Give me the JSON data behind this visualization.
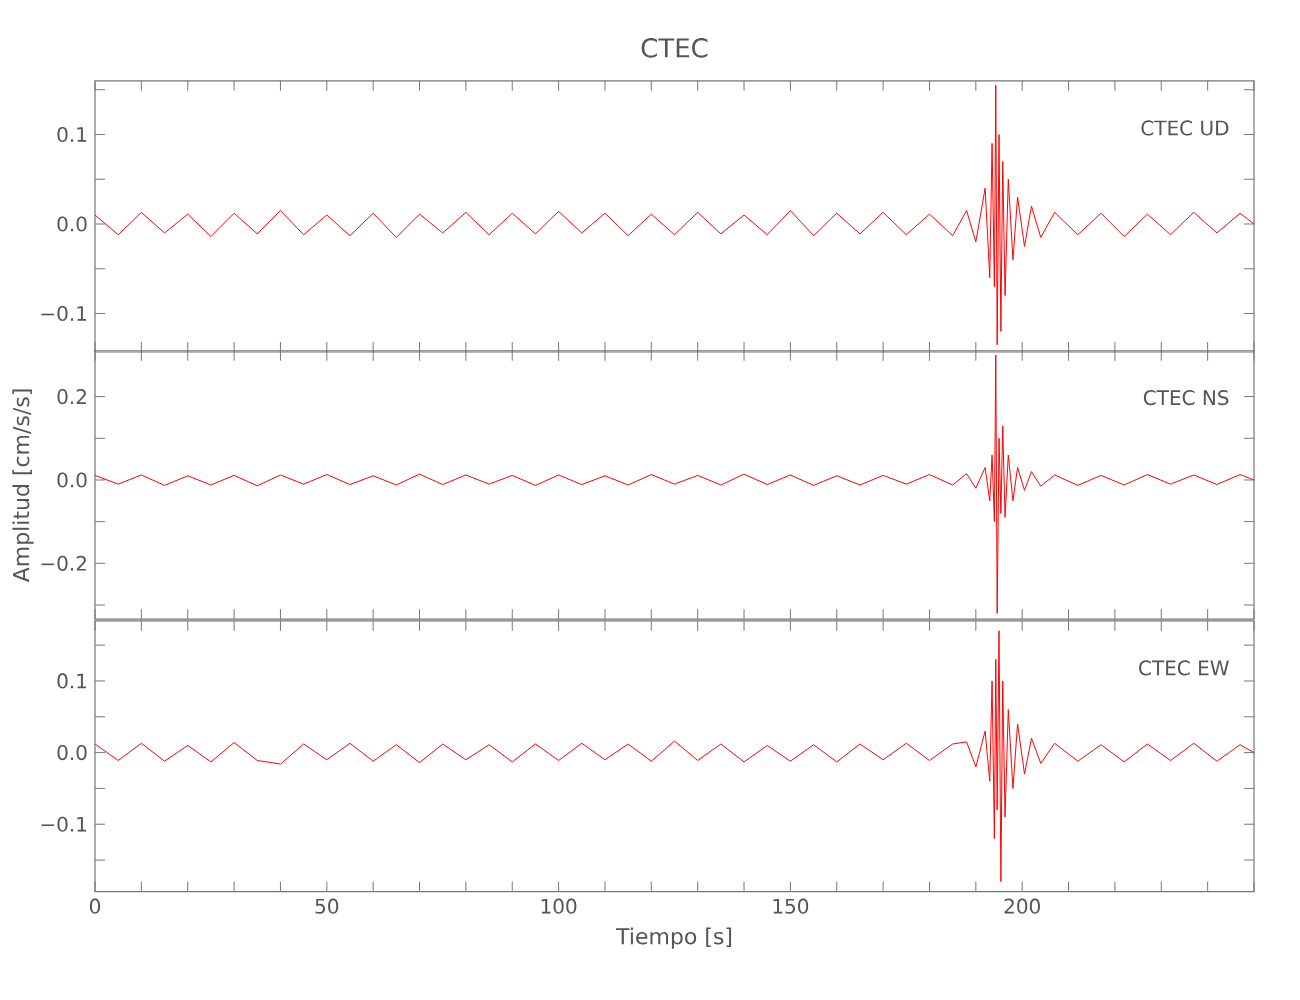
{
  "chart_data": [
    {
      "type": "line",
      "title": "CTEC",
      "annotations": [
        "CTEC   UD"
      ],
      "tick_labels": "y",
      "grid": false,
      "marker": "none",
      "line_style": "solid",
      "xlim": [
        0,
        250
      ],
      "xticks": [
        {
          "value": 0,
          "label": null
        },
        {
          "value": 10,
          "label": null
        },
        {
          "value": 20,
          "label": null
        },
        {
          "value": 30,
          "label": null
        },
        {
          "value": 40,
          "label": null
        },
        {
          "value": 50,
          "label": null
        },
        {
          "value": 60,
          "label": null
        },
        {
          "value": 70,
          "label": null
        },
        {
          "value": 80,
          "label": null
        },
        {
          "value": 90,
          "label": null
        },
        {
          "value": 100,
          "label": null
        },
        {
          "value": 110,
          "label": null
        },
        {
          "value": 120,
          "label": null
        },
        {
          "value": 130,
          "label": null
        },
        {
          "value": 140,
          "label": null
        },
        {
          "value": 150,
          "label": null
        },
        {
          "value": 160,
          "label": null
        },
        {
          "value": 170,
          "label": null
        },
        {
          "value": 180,
          "label": null
        },
        {
          "value": 190,
          "label": null
        },
        {
          "value": 200,
          "label": null
        },
        {
          "value": 210,
          "label": null
        },
        {
          "value": 220,
          "label": null
        },
        {
          "value": 230,
          "label": null
        },
        {
          "value": 240,
          "label": null
        },
        {
          "value": 250,
          "label": null
        }
      ],
      "ylim": [
        -0.143,
        0.16
      ],
      "yticks": [
        {
          "value": -0.1,
          "label": "−0.1"
        },
        {
          "value": -0.05,
          "label": null
        },
        {
          "value": 0,
          "label": "0.0"
        },
        {
          "value": 0.05,
          "label": null
        },
        {
          "value": 0.1,
          "label": "0.1"
        },
        {
          "value": 0.15,
          "label": null
        }
      ],
      "x": [
        0,
        5,
        10,
        15,
        20,
        25,
        30,
        35,
        40,
        45,
        50,
        55,
        60,
        65,
        70,
        75,
        80,
        85,
        90,
        95,
        100,
        105,
        110,
        115,
        120,
        125,
        130,
        135,
        140,
        145,
        150,
        155,
        160,
        165,
        170,
        175,
        180,
        185,
        188,
        190,
        192,
        193,
        193.5,
        194,
        194.3,
        194.6,
        195,
        195.4,
        195.8,
        196.3,
        197,
        198,
        199,
        200.5,
        202,
        204,
        207,
        212,
        217,
        222,
        227,
        232,
        237,
        242,
        247,
        250
      ],
      "series": [
        {
          "color": "#ff0000",
          "values": [
            0.01,
            -0.012,
            0.013,
            -0.01,
            0.011,
            -0.014,
            0.012,
            -0.011,
            0.015,
            -0.012,
            0.01,
            -0.013,
            0.012,
            -0.015,
            0.011,
            -0.01,
            0.013,
            -0.012,
            0.012,
            -0.011,
            0.014,
            -0.01,
            0.012,
            -0.013,
            0.011,
            -0.012,
            0.013,
            -0.011,
            0.01,
            -0.012,
            0.015,
            -0.013,
            0.012,
            -0.011,
            0.013,
            -0.012,
            0.011,
            -0.013,
            0.015,
            -0.02,
            0.04,
            -0.06,
            0.09,
            -0.07,
            0.155,
            -0.135,
            0.1,
            -0.12,
            0.07,
            -0.08,
            0.05,
            -0.04,
            0.03,
            -0.025,
            0.02,
            -0.015,
            0.013,
            -0.012,
            0.012,
            -0.014,
            0.011,
            -0.012,
            0.013,
            -0.01,
            0.012,
            0.0
          ]
        }
      ]
    },
    {
      "type": "line",
      "ylabel": "Amplitud [cm/s/s]",
      "annotations": [
        "CTEC   NS"
      ],
      "tick_labels": "y",
      "grid": false,
      "marker": "none",
      "line_style": "solid",
      "xlim": [
        0,
        250
      ],
      "xticks": [
        {
          "value": 0,
          "label": null
        },
        {
          "value": 10,
          "label": null
        },
        {
          "value": 20,
          "label": null
        },
        {
          "value": 30,
          "label": null
        },
        {
          "value": 40,
          "label": null
        },
        {
          "value": 50,
          "label": null
        },
        {
          "value": 60,
          "label": null
        },
        {
          "value": 70,
          "label": null
        },
        {
          "value": 80,
          "label": null
        },
        {
          "value": 90,
          "label": null
        },
        {
          "value": 100,
          "label": null
        },
        {
          "value": 110,
          "label": null
        },
        {
          "value": 120,
          "label": null
        },
        {
          "value": 130,
          "label": null
        },
        {
          "value": 140,
          "label": null
        },
        {
          "value": 150,
          "label": null
        },
        {
          "value": 160,
          "label": null
        },
        {
          "value": 170,
          "label": null
        },
        {
          "value": 180,
          "label": null
        },
        {
          "value": 190,
          "label": null
        },
        {
          "value": 200,
          "label": null
        },
        {
          "value": 210,
          "label": null
        },
        {
          "value": 220,
          "label": null
        },
        {
          "value": 230,
          "label": null
        },
        {
          "value": 240,
          "label": null
        },
        {
          "value": 250,
          "label": null
        }
      ],
      "ylim": [
        -0.334,
        0.31
      ],
      "yticks": [
        {
          "value": -0.3,
          "label": null
        },
        {
          "value": -0.2,
          "label": "−0.2"
        },
        {
          "value": -0.1,
          "label": null
        },
        {
          "value": 0,
          "label": "0.0"
        },
        {
          "value": 0.1,
          "label": null
        },
        {
          "value": 0.2,
          "label": "0.2"
        }
      ],
      "x": [
        0,
        5,
        10,
        15,
        20,
        25,
        30,
        35,
        40,
        45,
        50,
        55,
        60,
        65,
        70,
        75,
        80,
        85,
        90,
        95,
        100,
        105,
        110,
        115,
        120,
        125,
        130,
        135,
        140,
        145,
        150,
        155,
        160,
        165,
        170,
        175,
        180,
        185,
        188,
        190,
        192,
        193,
        193.5,
        194,
        194.3,
        194.6,
        195,
        195.4,
        195.8,
        196.3,
        197,
        198,
        199,
        200.5,
        202,
        204,
        207,
        212,
        217,
        222,
        227,
        232,
        237,
        242,
        247,
        250
      ],
      "series": [
        {
          "color": "#ff0000",
          "values": [
            0.011,
            -0.01,
            0.012,
            -0.013,
            0.01,
            -0.012,
            0.011,
            -0.014,
            0.012,
            -0.01,
            0.013,
            -0.011,
            0.01,
            -0.012,
            0.014,
            -0.011,
            0.012,
            -0.01,
            0.011,
            -0.013,
            0.012,
            -0.011,
            0.01,
            -0.012,
            0.013,
            -0.01,
            0.011,
            -0.012,
            0.014,
            -0.011,
            0.012,
            -0.013,
            0.01,
            -0.012,
            0.011,
            -0.01,
            0.013,
            -0.012,
            0.015,
            -0.02,
            0.03,
            -0.05,
            0.06,
            -0.1,
            0.3,
            -0.32,
            0.1,
            -0.08,
            0.13,
            -0.09,
            0.06,
            -0.05,
            0.03,
            -0.025,
            0.02,
            -0.015,
            0.012,
            -0.013,
            0.011,
            -0.012,
            0.013,
            -0.01,
            0.012,
            -0.011,
            0.013,
            0.0
          ]
        }
      ]
    },
    {
      "type": "line",
      "xlabel": "Tiempo [s]",
      "annotations": [
        "CTEC   EW"
      ],
      "grid": false,
      "marker": "none",
      "line_style": "solid",
      "xlim": [
        0,
        250
      ],
      "xticks": [
        0,
        {
          "value": 10,
          "label": null
        },
        {
          "value": 20,
          "label": null
        },
        {
          "value": 30,
          "label": null
        },
        {
          "value": 40,
          "label": null
        },
        50,
        {
          "value": 60,
          "label": null
        },
        {
          "value": 70,
          "label": null
        },
        {
          "value": 80,
          "label": null
        },
        {
          "value": 90,
          "label": null
        },
        100,
        {
          "value": 110,
          "label": null
        },
        {
          "value": 120,
          "label": null
        },
        {
          "value": 130,
          "label": null
        },
        {
          "value": 140,
          "label": null
        },
        150,
        {
          "value": 160,
          "label": null
        },
        {
          "value": 170,
          "label": null
        },
        {
          "value": 180,
          "label": null
        },
        {
          "value": 190,
          "label": null
        },
        200,
        {
          "value": 210,
          "label": null
        },
        {
          "value": 220,
          "label": null
        },
        {
          "value": 230,
          "label": null
        },
        {
          "value": 240,
          "label": null
        },
        {
          "value": 250,
          "label": null
        }
      ],
      "ylim": [
        -0.194,
        0.184
      ],
      "yticks": [
        {
          "value": -0.15,
          "label": null
        },
        {
          "value": -0.1,
          "label": "−0.1"
        },
        {
          "value": -0.05,
          "label": null
        },
        {
          "value": 0,
          "label": "0.0"
        },
        {
          "value": 0.05,
          "label": null
        },
        {
          "value": 0.1,
          "label": "0.1"
        },
        {
          "value": 0.15,
          "label": null
        }
      ],
      "x": [
        0,
        5,
        10,
        15,
        20,
        25,
        30,
        35,
        40,
        45,
        50,
        55,
        60,
        65,
        70,
        75,
        80,
        85,
        90,
        95,
        100,
        105,
        110,
        115,
        120,
        125,
        130,
        135,
        140,
        145,
        150,
        155,
        160,
        165,
        170,
        175,
        180,
        185,
        188,
        190,
        192,
        193,
        193.5,
        194,
        194.3,
        194.6,
        195,
        195.4,
        195.8,
        196.3,
        197,
        198,
        199,
        200.5,
        202,
        204,
        207,
        212,
        217,
        222,
        227,
        232,
        237,
        242,
        247,
        250
      ],
      "series": [
        {
          "color": "#ff0000",
          "values": [
            0.012,
            -0.011,
            0.013,
            -0.012,
            0.01,
            -0.013,
            0.014,
            -0.011,
            -0.016,
            0.012,
            -0.01,
            0.013,
            -0.012,
            0.011,
            -0.014,
            0.012,
            -0.01,
            0.011,
            -0.013,
            0.012,
            -0.011,
            0.013,
            -0.01,
            0.012,
            -0.012,
            0.016,
            -0.011,
            0.012,
            -0.013,
            0.01,
            -0.012,
            0.011,
            -0.013,
            0.012,
            -0.01,
            0.013,
            -0.011,
            0.012,
            0.015,
            -0.02,
            0.03,
            -0.04,
            0.1,
            -0.12,
            0.13,
            -0.08,
            0.17,
            -0.18,
            0.1,
            -0.09,
            0.06,
            -0.05,
            0.04,
            -0.03,
            0.02,
            -0.015,
            0.013,
            -0.012,
            0.011,
            -0.013,
            0.012,
            -0.011,
            0.013,
            -0.012,
            0.011,
            0.0
          ]
        }
      ]
    }
  ]
}
